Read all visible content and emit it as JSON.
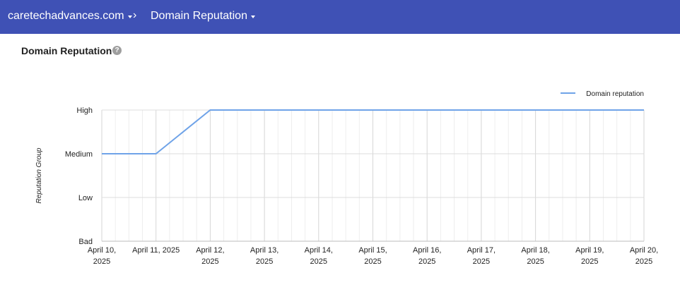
{
  "header": {
    "domain": "caretechadvances.com",
    "separator": "›",
    "page": "Domain Reputation"
  },
  "card": {
    "title": "Domain Reputation",
    "help_icon": "?"
  },
  "colors": {
    "header_bg": "#3f51b5",
    "series": "#6fa3e8"
  },
  "chart_data": {
    "type": "line",
    "ylabel": "Reputation Group",
    "y_categories": [
      "Bad",
      "Low",
      "Medium",
      "High"
    ],
    "x_labels": [
      [
        "April 10,",
        "2025"
      ],
      [
        "April 11, 2025"
      ],
      [
        "April 12,",
        "2025"
      ],
      [
        "April 13,",
        "2025"
      ],
      [
        "April 14,",
        "2025"
      ],
      [
        "April 15,",
        "2025"
      ],
      [
        "April 16,",
        "2025"
      ],
      [
        "April 17,",
        "2025"
      ],
      [
        "April 18,",
        "2025"
      ],
      [
        "April 19,",
        "2025"
      ],
      [
        "April 20,",
        "2025"
      ]
    ],
    "series": [
      {
        "name": "Domain reputation",
        "x": [
          "2025-04-10",
          "2025-04-11",
          "2025-04-12",
          "2025-04-13",
          "2025-04-14",
          "2025-04-15",
          "2025-04-16",
          "2025-04-17",
          "2025-04-18",
          "2025-04-19",
          "2025-04-20"
        ],
        "values": [
          "Medium",
          "Medium",
          "High",
          "High",
          "High",
          "High",
          "High",
          "High",
          "High",
          "High",
          "High"
        ]
      }
    ],
    "legend_position": "top-right",
    "grid": true
  }
}
